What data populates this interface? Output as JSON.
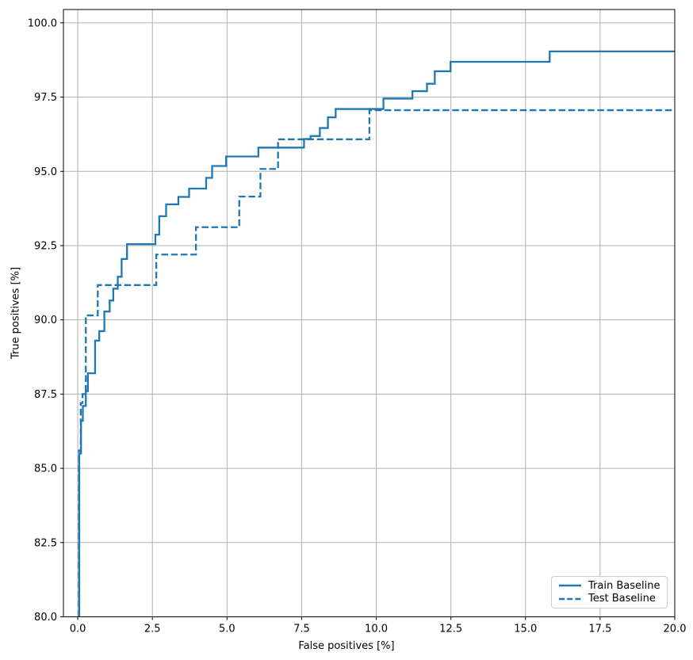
{
  "figure": {
    "title": "",
    "xlabel": "False positives [%]",
    "ylabel": "True positives [%]"
  },
  "chart_data": {
    "type": "line",
    "subtype": "roc-step-curves",
    "title": "",
    "xlabel": "False positives [%]",
    "ylabel": "True positives [%]",
    "xlim": [
      -0.48,
      20
    ],
    "ylim": [
      80,
      100.45
    ],
    "x_ticks": [
      0,
      2.5,
      5,
      7.5,
      10,
      12.5,
      15,
      17.5,
      20
    ],
    "x_tick_labels": [
      "0.0",
      "2.5",
      "5.0",
      "7.5",
      "10.0",
      "12.5",
      "15.0",
      "17.5",
      "20.0"
    ],
    "y_ticks": [
      80,
      82.5,
      85,
      87.5,
      90,
      92.5,
      95,
      97.5,
      100
    ],
    "y_tick_labels": [
      "80.0",
      "82.5",
      "85.0",
      "87.5",
      "90.0",
      "92.5",
      "95.0",
      "97.5",
      "100.0"
    ],
    "grid": true,
    "grid_color": "#b0b0b0",
    "spine_color": "#000000",
    "accent_color": "#1f77b4",
    "legend": {
      "position": "lower right",
      "entries": [
        "Train Baseline",
        "Test Baseline"
      ]
    },
    "series": [
      {
        "name": "Train Baseline",
        "style": "solid",
        "color": "#1f77b4",
        "points": [
          [
            0.05,
            80.0
          ],
          [
            0.05,
            85.5
          ],
          [
            0.11,
            85.5
          ],
          [
            0.11,
            86.6
          ],
          [
            0.17,
            86.6
          ],
          [
            0.17,
            87.1
          ],
          [
            0.27,
            87.1
          ],
          [
            0.27,
            87.6
          ],
          [
            0.34,
            87.6
          ],
          [
            0.34,
            88.2
          ],
          [
            0.58,
            88.2
          ],
          [
            0.58,
            89.3
          ],
          [
            0.72,
            89.3
          ],
          [
            0.72,
            89.62
          ],
          [
            0.89,
            89.62
          ],
          [
            0.89,
            90.28
          ],
          [
            1.07,
            90.28
          ],
          [
            1.07,
            90.65
          ],
          [
            1.19,
            90.65
          ],
          [
            1.19,
            91.05
          ],
          [
            1.34,
            91.05
          ],
          [
            1.34,
            91.45
          ],
          [
            1.47,
            91.45
          ],
          [
            1.47,
            92.05
          ],
          [
            1.65,
            92.05
          ],
          [
            1.65,
            92.55
          ],
          [
            2.6,
            92.55
          ],
          [
            2.6,
            92.87
          ],
          [
            2.73,
            92.87
          ],
          [
            2.73,
            93.49
          ],
          [
            2.96,
            93.49
          ],
          [
            2.96,
            93.89
          ],
          [
            3.37,
            93.89
          ],
          [
            3.37,
            94.14
          ],
          [
            3.73,
            94.14
          ],
          [
            3.73,
            94.42
          ],
          [
            4.3,
            94.42
          ],
          [
            4.3,
            94.78
          ],
          [
            4.5,
            94.78
          ],
          [
            4.5,
            95.18
          ],
          [
            4.97,
            95.18
          ],
          [
            4.97,
            95.5
          ],
          [
            6.05,
            95.5
          ],
          [
            6.05,
            95.8
          ],
          [
            7.58,
            95.8
          ],
          [
            7.58,
            96.09
          ],
          [
            7.8,
            96.09
          ],
          [
            7.8,
            96.19
          ],
          [
            8.11,
            96.19
          ],
          [
            8.11,
            96.46
          ],
          [
            8.38,
            96.46
          ],
          [
            8.38,
            96.82
          ],
          [
            8.64,
            96.82
          ],
          [
            8.64,
            97.1
          ],
          [
            10.24,
            97.1
          ],
          [
            10.24,
            97.45
          ],
          [
            11.21,
            97.45
          ],
          [
            11.21,
            97.7
          ],
          [
            11.7,
            97.7
          ],
          [
            11.7,
            97.95
          ],
          [
            11.96,
            97.95
          ],
          [
            11.96,
            98.37
          ],
          [
            12.49,
            98.37
          ],
          [
            12.49,
            98.69
          ],
          [
            15.81,
            98.69
          ],
          [
            15.81,
            99.04
          ],
          [
            20.0,
            99.04
          ]
        ]
      },
      {
        "name": "Test Baseline",
        "style": "dashed",
        "color": "#1f77b4",
        "points": [
          [
            0.04,
            80.0
          ],
          [
            0.04,
            85.6
          ],
          [
            0.1,
            85.6
          ],
          [
            0.1,
            87.2
          ],
          [
            0.16,
            87.2
          ],
          [
            0.16,
            87.5
          ],
          [
            0.27,
            87.5
          ],
          [
            0.27,
            90.15
          ],
          [
            0.67,
            90.15
          ],
          [
            0.67,
            91.17
          ],
          [
            2.63,
            91.17
          ],
          [
            2.63,
            92.2
          ],
          [
            3.96,
            92.2
          ],
          [
            3.96,
            93.12
          ],
          [
            5.41,
            93.12
          ],
          [
            5.41,
            94.15
          ],
          [
            6.12,
            94.15
          ],
          [
            6.12,
            95.08
          ],
          [
            6.71,
            95.08
          ],
          [
            6.71,
            96.08
          ],
          [
            9.77,
            96.08
          ],
          [
            9.77,
            97.06
          ],
          [
            20.0,
            97.06
          ]
        ]
      }
    ]
  }
}
